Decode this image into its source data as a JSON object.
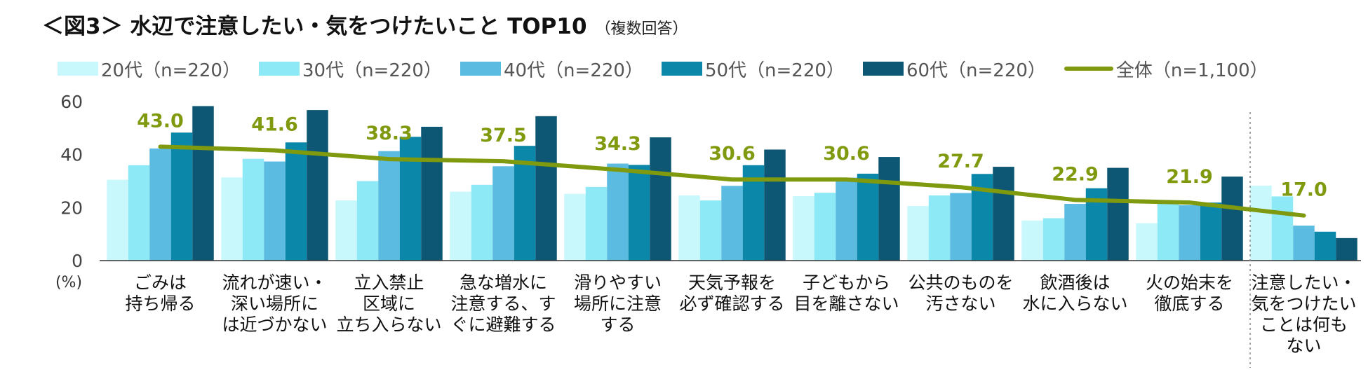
{
  "title": "＜図3＞ 水辺で注意したい・気をつけたいこと TOP10",
  "subtitle": "（複数回答）",
  "y_unit": "(%)",
  "chart_data": {
    "type": "bar",
    "title": "＜図3＞ 水辺で注意したい・気をつけたいこと TOP10",
    "subtitle": "（複数回答）",
    "ylabel": "(%)",
    "ylim": [
      0,
      60
    ],
    "yticks": [
      0,
      20,
      40,
      60
    ],
    "grid": false,
    "legend_position": "top",
    "categories": [
      [
        "ごみは",
        "持ち帰る"
      ],
      [
        "流れが速い・",
        "深い場所に",
        "は近づかない"
      ],
      [
        "立入禁止",
        "区域に",
        "立ち入らない"
      ],
      [
        "急な増水に",
        "注意する、す",
        "ぐに避難する"
      ],
      [
        "滑りやすい",
        "場所に注意",
        "する"
      ],
      [
        "天気予報を",
        "必ず確認する"
      ],
      [
        "子どもから",
        "目を離さない"
      ],
      [
        "公共のものを",
        "汚さない"
      ],
      [
        "飲酒後は",
        "水に入らない"
      ],
      [
        "火の始末を",
        "徹底する"
      ],
      [
        "注意したい・",
        "気をつけたい",
        "ことは何も",
        "ない"
      ]
    ],
    "series": [
      {
        "name": "20代（n=220）",
        "type": "bar",
        "color": "#c8f8fc",
        "values": [
          30.5,
          31.4,
          22.7,
          26.0,
          25.2,
          24.6,
          24.3,
          20.6,
          15.1,
          14.1,
          28.3
        ]
      },
      {
        "name": "30代（n=220）",
        "type": "bar",
        "color": "#8ee9f6",
        "values": [
          36.0,
          38.4,
          30.0,
          28.6,
          27.8,
          22.7,
          25.6,
          24.6,
          16.0,
          21.5,
          24.2
        ]
      },
      {
        "name": "40代（n=220）",
        "type": "bar",
        "color": "#5bbbe0",
        "values": [
          42.3,
          37.4,
          41.3,
          35.6,
          36.6,
          28.2,
          31.3,
          25.5,
          21.4,
          20.9,
          13.2
        ]
      },
      {
        "name": "50代（n=220）",
        "type": "bar",
        "color": "#0a87a9",
        "values": [
          48.3,
          44.6,
          46.7,
          43.3,
          36.1,
          36.0,
          32.8,
          32.7,
          27.3,
          21.9,
          10.9
        ]
      },
      {
        "name": "60代（n=220）",
        "type": "bar",
        "color": "#0d5774",
        "values": [
          58.3,
          56.8,
          50.5,
          54.5,
          46.5,
          41.9,
          39.1,
          35.4,
          35.0,
          31.7,
          8.5
        ]
      },
      {
        "name": "全体（n=1,100）",
        "type": "line",
        "color": "#7f9a0e",
        "values": [
          43.0,
          41.6,
          38.3,
          37.5,
          34.3,
          30.6,
          30.6,
          27.7,
          22.9,
          21.9,
          17.0
        ],
        "labels": [
          "43.0",
          "41.6",
          "38.3",
          "37.5",
          "34.3",
          "30.6",
          "30.6",
          "27.7",
          "22.9",
          "21.9",
          "17.0"
        ]
      }
    ],
    "annotations": [
      "dotted separator before last category"
    ]
  }
}
